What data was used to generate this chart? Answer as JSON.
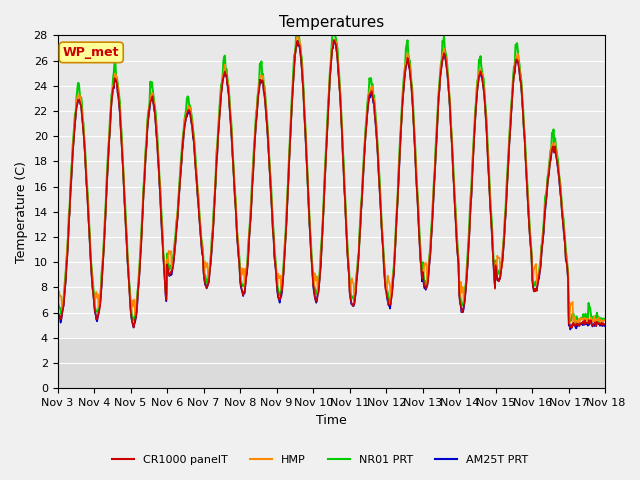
{
  "title": "Temperatures",
  "xlabel": "Time",
  "ylabel": "Temperature (C)",
  "ylim": [
    0,
    28
  ],
  "yticks": [
    0,
    2,
    4,
    6,
    8,
    10,
    12,
    14,
    16,
    18,
    20,
    22,
    24,
    26,
    28
  ],
  "xtick_labels": [
    "Nov 3",
    "Nov 4",
    "Nov 5",
    "Nov 6",
    "Nov 7",
    "Nov 8",
    "Nov 9",
    "Nov 10",
    "Nov 11",
    "Nov 12",
    "Nov 13",
    "Nov 14",
    "Nov 15",
    "Nov 16",
    "Nov 17",
    "Nov 18"
  ],
  "bg_color": "#e8e8e8",
  "plot_bg_color": "#e8e8e8",
  "series": {
    "CR1000 panelT": {
      "color": "#cc0000",
      "lw": 1.2
    },
    "HMP": {
      "color": "#ff8800",
      "lw": 1.2
    },
    "NR01 PRT": {
      "color": "#00cc00",
      "lw": 1.5
    },
    "AM25T PRT": {
      "color": "#0000cc",
      "lw": 1.2
    }
  },
  "legend_box": {
    "label": "WP_met",
    "text_color": "#cc0000",
    "bg_color": "#ffff99",
    "edge_color": "#cc8800"
  },
  "n_days": 15,
  "pts_per_day": 48,
  "day_min_temps": [
    5.5,
    5.5,
    5.0,
    9.0,
    8.0,
    7.5,
    7.0,
    7.0,
    6.5,
    6.5,
    8.0,
    6.2,
    8.5,
    7.8,
    5.0
  ],
  "day_max_temps": [
    23.0,
    24.5,
    23.0,
    22.0,
    25.0,
    24.5,
    27.5,
    27.5,
    23.5,
    26.0,
    26.5,
    25.0,
    26.0,
    19.0,
    5.2
  ]
}
